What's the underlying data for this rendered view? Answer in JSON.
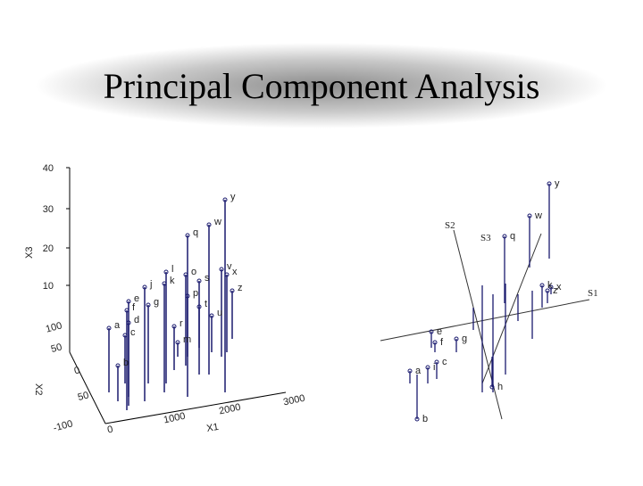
{
  "header": {
    "title": "Principal Component Analysis"
  },
  "left_plot": {
    "z_axis": {
      "label": "X3",
      "ticks": [
        "40",
        "30",
        "20",
        "10"
      ]
    },
    "y_axis": {
      "label": "X2",
      "ticks": [
        "100",
        "50",
        "0",
        "50",
        "-100"
      ]
    },
    "x_axis": {
      "label": "X1",
      "ticks": [
        "0",
        "1000",
        "2000",
        "3000"
      ]
    },
    "points": [
      "y",
      "w",
      "q",
      "v",
      "x",
      "z",
      "l",
      "o",
      "s",
      "k",
      "j",
      "p",
      "t",
      "u",
      "e",
      "f",
      "g",
      "d",
      "a",
      "c",
      "r",
      "m",
      "b"
    ]
  },
  "right_plot": {
    "axes": [
      "S1",
      "S2",
      "S3"
    ],
    "points": [
      "y",
      "w",
      "q",
      "z",
      "x",
      "k",
      "e",
      "f",
      "g",
      "a",
      "i",
      "c",
      "b",
      "h"
    ]
  }
}
